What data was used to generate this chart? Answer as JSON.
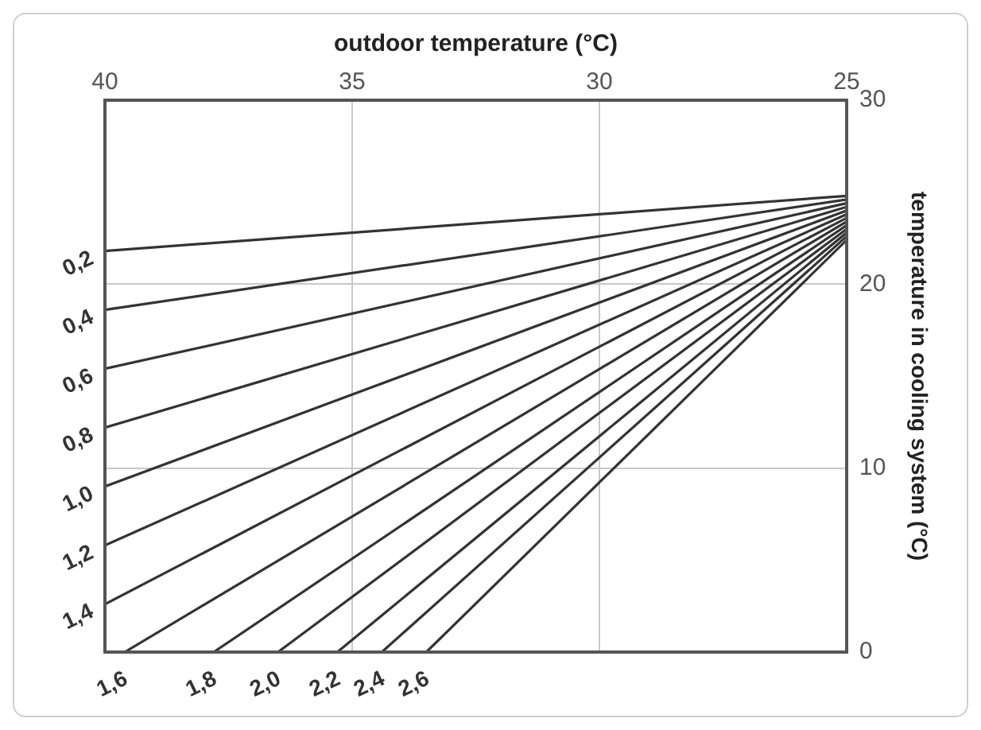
{
  "chart_data": {
    "type": "line",
    "xlabel": "outdoor temperature (°C)",
    "ylabel": "temperature in cooling system (°C)",
    "xlim": [
      40,
      25
    ],
    "xticks": [
      40,
      35,
      30,
      25
    ],
    "ylim": [
      0,
      30
    ],
    "yticks": [
      0,
      10,
      20,
      30
    ],
    "grid": true,
    "legend": false,
    "marker": "none",
    "line_style": "solid",
    "series": [
      {
        "name": "0,2",
        "color": "#333333",
        "x": [
          40,
          25
        ],
        "values": [
          21.8,
          24.8
        ]
      },
      {
        "name": "0,4",
        "color": "#333333",
        "x": [
          40,
          25
        ],
        "values": [
          18.6,
          24.6
        ]
      },
      {
        "name": "0,6",
        "color": "#333333",
        "x": [
          40,
          25
        ],
        "values": [
          15.4,
          24.4
        ]
      },
      {
        "name": "0,8",
        "color": "#333333",
        "x": [
          40,
          25
        ],
        "values": [
          12.2,
          24.2
        ]
      },
      {
        "name": "1,0",
        "color": "#333333",
        "x": [
          40,
          25
        ],
        "values": [
          9.0,
          24.0
        ]
      },
      {
        "name": "1,2",
        "color": "#333333",
        "x": [
          40,
          25
        ],
        "values": [
          5.8,
          23.8
        ]
      },
      {
        "name": "1,4",
        "color": "#333333",
        "x": [
          40,
          25
        ],
        "values": [
          2.6,
          23.6
        ]
      },
      {
        "name": "1,6",
        "color": "#333333",
        "x": [
          39.6,
          25
        ],
        "values": [
          0,
          23.4
        ]
      },
      {
        "name": "1,8",
        "color": "#333333",
        "x": [
          37.8,
          25
        ],
        "values": [
          0,
          23.2
        ]
      },
      {
        "name": "2,0",
        "color": "#333333",
        "x": [
          36.5,
          25
        ],
        "values": [
          0,
          23.0
        ]
      },
      {
        "name": "2,2",
        "color": "#333333",
        "x": [
          35.3,
          25
        ],
        "values": [
          0,
          22.8
        ]
      },
      {
        "name": "2,4",
        "color": "#333333",
        "x": [
          34.4,
          25
        ],
        "values": [
          0,
          22.6
        ]
      },
      {
        "name": "2,6",
        "color": "#333333",
        "x": [
          33.5,
          25
        ],
        "values": [
          0,
          22.4
        ]
      }
    ]
  }
}
